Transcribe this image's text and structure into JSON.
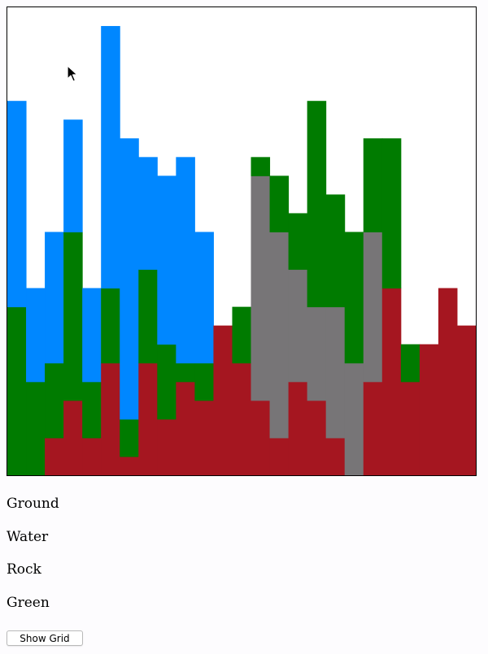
{
  "controls": {
    "ground_label": "Ground",
    "water_label": "Water",
    "rock_label": "Rock",
    "green_label": "Green",
    "show_grid_label": "Show Grid"
  },
  "colors": {
    "sky": "#ffffff",
    "ground": "#a51620",
    "water": "#0087ff",
    "rock": "#777577",
    "green": "#007b00"
  },
  "terrain": {
    "columns": 25,
    "rows": 25,
    "stack_order": [
      "ground",
      "rock",
      "green",
      "water"
    ],
    "heights": {
      "ground": [
        0,
        0,
        2,
        4,
        2,
        6,
        1,
        6,
        3,
        5,
        4,
        8,
        6,
        4,
        2,
        5,
        4,
        2,
        0,
        5,
        10,
        5,
        7,
        10,
        8
      ],
      "rock": [
        0,
        0,
        0,
        0,
        0,
        0,
        0,
        0,
        0,
        0,
        0,
        0,
        0,
        12,
        11,
        6,
        5,
        7,
        6,
        8,
        0,
        0,
        0,
        0,
        0
      ],
      "green": [
        9,
        5,
        4,
        9,
        3,
        4,
        2,
        5,
        4,
        1,
        2,
        0,
        3,
        1,
        3,
        3,
        11,
        6,
        7,
        5,
        8,
        2,
        0,
        0,
        0
      ],
      "water": [
        11,
        5,
        7,
        6,
        5,
        14,
        15,
        6,
        9,
        11,
        7,
        0,
        0,
        0,
        0,
        0,
        0,
        0,
        0,
        0,
        0,
        0,
        0,
        0,
        0
      ]
    }
  },
  "cursor": "arrow-cursor-icon"
}
